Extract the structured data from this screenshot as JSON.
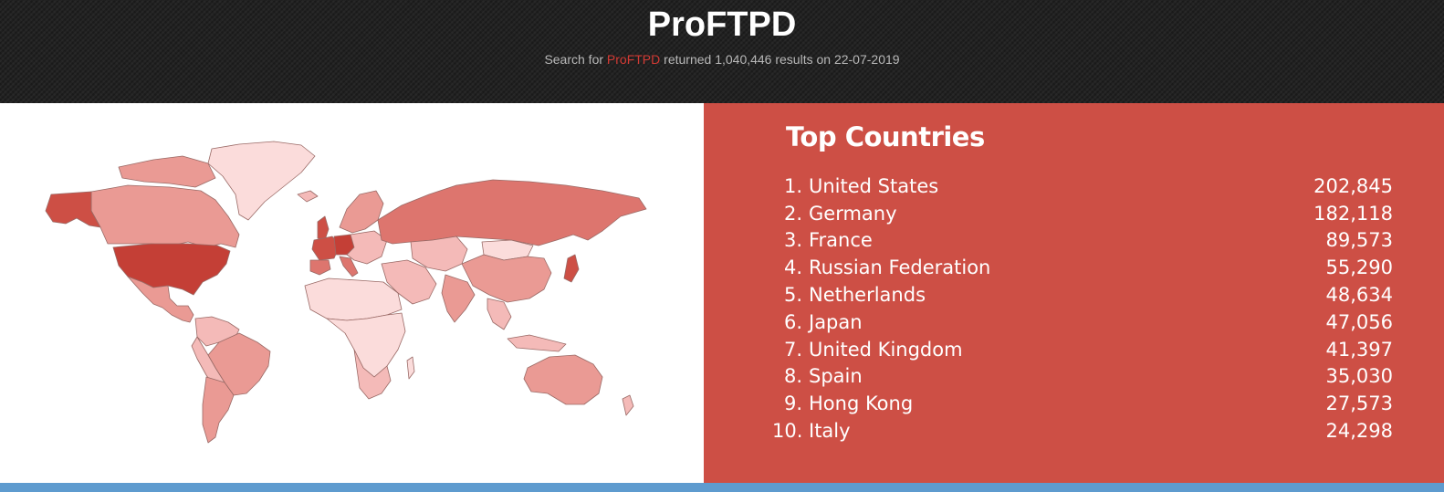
{
  "header": {
    "title": "ProFTPD",
    "subtitle_prefix": "Search for ",
    "subtitle_query": "ProFTPD",
    "subtitle_suffix": " returned 1,040,446 results on 22-07-2019"
  },
  "top_countries": {
    "title": "Top Countries",
    "items": [
      {
        "rank": "1.",
        "name": "United States",
        "count": "202,845"
      },
      {
        "rank": "2.",
        "name": "Germany",
        "count": "182,118"
      },
      {
        "rank": "3.",
        "name": "France",
        "count": "89,573"
      },
      {
        "rank": "4.",
        "name": "Russian Federation",
        "count": "55,290"
      },
      {
        "rank": "5.",
        "name": "Netherlands",
        "count": "48,634"
      },
      {
        "rank": "6.",
        "name": "Japan",
        "count": "47,056"
      },
      {
        "rank": "7.",
        "name": "United Kingdom",
        "count": "41,397"
      },
      {
        "rank": "8.",
        "name": "Spain",
        "count": "35,030"
      },
      {
        "rank": "9.",
        "name": "Hong Kong",
        "count": "27,573"
      },
      {
        "rank": "10.",
        "name": "Italy",
        "count": "24,298"
      }
    ]
  },
  "colors": {
    "header_bg": "#232323",
    "accent_red": "#d23a34",
    "panel_red": "#cd4f45",
    "bottom_bar": "#5e9bcf",
    "map_shades": [
      "#fbdcdb",
      "#f4bab8",
      "#ea9a94",
      "#dd756e",
      "#cd4f45",
      "#c43f36"
    ]
  }
}
